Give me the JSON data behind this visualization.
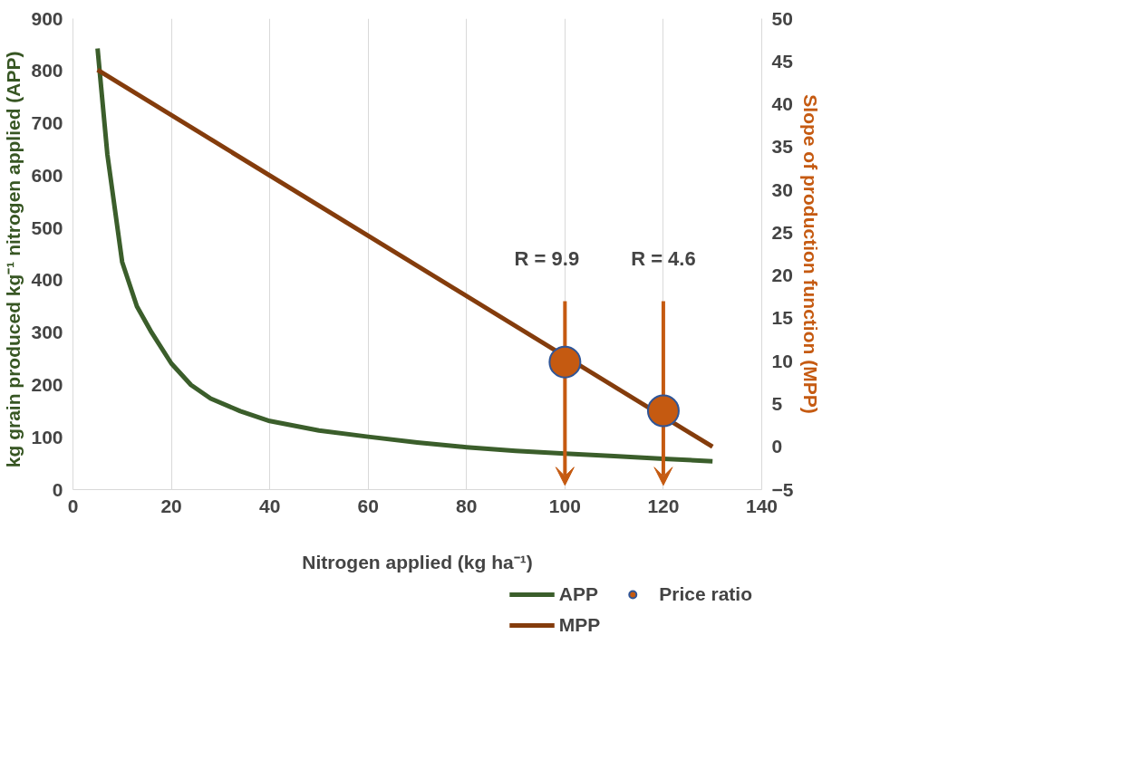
{
  "chart_data": {
    "type": "line",
    "xlabel": "Nitrogen applied (kg ha⁻¹)",
    "ylabel": "kg  grain produced kg⁻¹  nitrogen applied (APP)",
    "y2label": "Slope of production function (MPP)",
    "xlim": [
      0,
      140
    ],
    "xticks": [
      0,
      20,
      40,
      60,
      80,
      100,
      120,
      140
    ],
    "ylim": [
      0,
      900
    ],
    "yticks": [
      0,
      100,
      200,
      300,
      400,
      500,
      600,
      700,
      800,
      900
    ],
    "y2lim": [
      -5,
      50
    ],
    "y2ticks": [
      -5,
      0,
      5,
      10,
      15,
      20,
      25,
      30,
      35,
      40,
      45,
      50
    ],
    "grid": "x",
    "legend": "bottom",
    "line_style": "solid",
    "series": [
      {
        "name": "APP",
        "color": "#3b5e2b",
        "axis": "y",
        "x": [
          5,
          7,
          10,
          13,
          16,
          20,
          24,
          28,
          34,
          40,
          50,
          60,
          70,
          80,
          90,
          100,
          110,
          120,
          130
        ],
        "values": [
          843,
          640,
          435,
          350,
          300,
          241,
          200,
          174,
          150,
          131,
          113,
          101,
          90,
          81,
          74,
          69,
          64,
          59,
          54
        ]
      },
      {
        "name": "MPP",
        "color": "#843c0c",
        "axis": "y2",
        "x": [
          5,
          130
        ],
        "values": [
          44,
          0
        ]
      },
      {
        "name": "Price ratio",
        "type": "scatter",
        "marker": "circle",
        "color": "#c55a11",
        "axis": "y2",
        "x": [
          100,
          120
        ],
        "values": [
          9.9,
          4.2
        ]
      }
    ],
    "annotations": [
      "R = 9.9",
      "R = 4.6"
    ]
  }
}
